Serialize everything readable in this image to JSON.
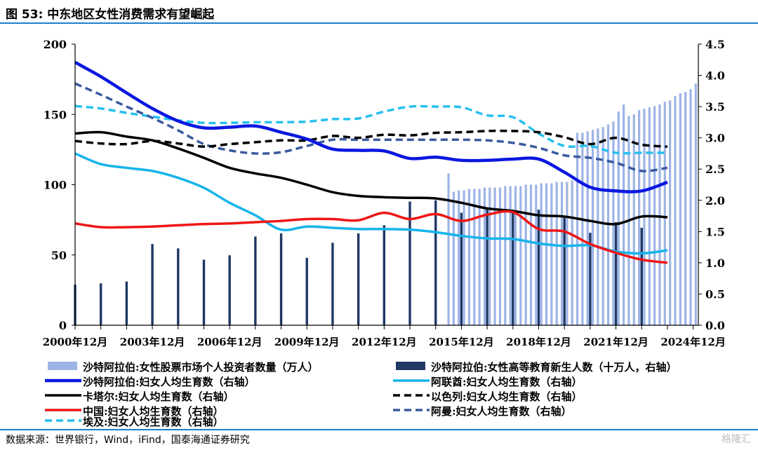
{
  "page": {
    "title": "图 53:  中东地区女性消费需求有望崛起",
    "source": "数据来源：世界银行，Wind，iFind，国泰海通证券研究",
    "watermark": "格隆汇"
  },
  "colors": {
    "rule": "#1e7fd1",
    "saudi_investors": "#9db4e6",
    "saudi_edu": "#1f3864",
    "saudi": "#0a17e0",
    "uae": "#16b4ea",
    "qatar": "#000000",
    "israel": "#000000",
    "china": "#f01616",
    "oman": "#3a5a9e",
    "egypt": "#27c0ef"
  },
  "chart_data": {
    "type": "bar+line",
    "x_years": [
      2000,
      2001,
      2002,
      2003,
      2004,
      2005,
      2006,
      2007,
      2008,
      2009,
      2010,
      2011,
      2012,
      2013,
      2014,
      2015,
      2016,
      2017,
      2018,
      2019,
      2020,
      2021,
      2022,
      2023,
      2024
    ],
    "x_tick_labels": [
      "2000年12月",
      "2003年12月",
      "2006年12月",
      "2009年12月",
      "2012年12月",
      "2015年12月",
      "2018年12月",
      "2021年12月",
      "2024年12月"
    ],
    "left_axis": {
      "ylim": [
        0,
        200
      ],
      "ticks": [
        "0",
        "50",
        "100",
        "150",
        "200"
      ]
    },
    "right_axis": {
      "ylim": [
        0,
        4.5
      ],
      "ticks": [
        "0.0",
        "0.5",
        "1.0",
        "1.5",
        "2.0",
        "2.5",
        "3.0",
        "3.5",
        "4.0",
        "4.5"
      ]
    },
    "bars_left": {
      "name": "沙特阿拉伯:女性股票市场个人投资者数量（万人）",
      "points": [
        [
          2014.5,
          108
        ],
        [
          2014.7,
          95
        ],
        [
          2014.9,
          96
        ],
        [
          2015.1,
          96
        ],
        [
          2015.3,
          97
        ],
        [
          2015.5,
          97
        ],
        [
          2015.7,
          97
        ],
        [
          2015.9,
          98
        ],
        [
          2016.1,
          98
        ],
        [
          2016.3,
          98
        ],
        [
          2016.5,
          98
        ],
        [
          2016.7,
          99
        ],
        [
          2016.9,
          99
        ],
        [
          2017.1,
          99
        ],
        [
          2017.3,
          99
        ],
        [
          2017.5,
          100
        ],
        [
          2017.7,
          100
        ],
        [
          2017.9,
          100
        ],
        [
          2018.1,
          101
        ],
        [
          2018.3,
          101
        ],
        [
          2018.5,
          101
        ],
        [
          2018.7,
          102
        ],
        [
          2018.9,
          102
        ],
        [
          2019.1,
          102
        ],
        [
          2019.3,
          103
        ],
        [
          2019.5,
          137
        ],
        [
          2019.7,
          137
        ],
        [
          2019.9,
          138
        ],
        [
          2020.1,
          139
        ],
        [
          2020.3,
          140
        ],
        [
          2020.5,
          141
        ],
        [
          2020.7,
          143
        ],
        [
          2020.9,
          145
        ],
        [
          2021.1,
          152
        ],
        [
          2021.3,
          157
        ],
        [
          2021.5,
          149
        ],
        [
          2021.7,
          150
        ],
        [
          2021.9,
          153
        ],
        [
          2022.1,
          154
        ],
        [
          2022.3,
          155
        ],
        [
          2022.5,
          156
        ],
        [
          2022.7,
          157
        ],
        [
          2022.9,
          159
        ],
        [
          2023.1,
          160
        ],
        [
          2023.3,
          163
        ],
        [
          2023.5,
          165
        ],
        [
          2023.7,
          166
        ],
        [
          2023.9,
          168
        ],
        [
          2024.1,
          172
        ]
      ]
    },
    "bars_right": {
      "name": "沙特阿拉伯:女性高等教育新生人数（十万人，右轴）",
      "years": [
        2000,
        2001,
        2002,
        2003,
        2004,
        2005,
        2006,
        2007,
        2008,
        2009,
        2010,
        2011,
        2012,
        2013,
        2014,
        2015,
        2016,
        2017,
        2018,
        2019,
        2020,
        2021,
        2022
      ],
      "values": [
        0.65,
        0.67,
        0.7,
        1.3,
        1.23,
        1.05,
        1.12,
        1.42,
        1.47,
        1.08,
        1.32,
        1.47,
        1.6,
        1.98,
        2.0,
        1.8,
        1.85,
        1.8,
        1.85,
        1.72,
        1.48,
        1.65,
        1.56
      ]
    },
    "series": [
      {
        "name": "沙特阿拉伯:妇女人均生育数（右轴）",
        "key": "saudi",
        "axis": "right",
        "dash": false,
        "x": [
          2000,
          2001,
          2002,
          2003,
          2004,
          2005,
          2006,
          2007,
          2008,
          2009,
          2010,
          2011,
          2012,
          2013,
          2014,
          2015,
          2016,
          2017,
          2018,
          2019,
          2020,
          2021,
          2022,
          2023
        ],
        "values": [
          4.21,
          3.98,
          3.72,
          3.47,
          3.27,
          3.16,
          3.17,
          3.19,
          3.09,
          2.98,
          2.82,
          2.8,
          2.79,
          2.67,
          2.69,
          2.64,
          2.64,
          2.66,
          2.66,
          2.45,
          2.21,
          2.15,
          2.15,
          2.29
        ]
      },
      {
        "name": "阿联酋:妇女人均生育数（右轴）",
        "key": "uae",
        "axis": "right",
        "dash": false,
        "x": [
          2000,
          2001,
          2002,
          2003,
          2004,
          2005,
          2006,
          2007,
          2008,
          2009,
          2010,
          2011,
          2012,
          2013,
          2014,
          2015,
          2016,
          2017,
          2018,
          2019,
          2020,
          2021,
          2022,
          2023
        ],
        "values": [
          2.75,
          2.58,
          2.52,
          2.47,
          2.36,
          2.2,
          1.96,
          1.76,
          1.53,
          1.58,
          1.56,
          1.54,
          1.54,
          1.53,
          1.49,
          1.43,
          1.39,
          1.38,
          1.31,
          1.27,
          1.28,
          1.18,
          1.15,
          1.2
        ]
      },
      {
        "name": "卡塔尔:妇女人均生育数（右轴）",
        "key": "qatar",
        "axis": "right",
        "dash": false,
        "x": [
          2000,
          2001,
          2002,
          2003,
          2004,
          2005,
          2006,
          2007,
          2008,
          2009,
          2010,
          2011,
          2012,
          2013,
          2014,
          2015,
          2016,
          2017,
          2018,
          2019,
          2020,
          2021,
          2022,
          2023
        ],
        "values": [
          3.07,
          3.09,
          3.02,
          2.96,
          2.83,
          2.68,
          2.52,
          2.43,
          2.36,
          2.25,
          2.13,
          2.07,
          2.05,
          2.04,
          2.03,
          1.96,
          1.87,
          1.83,
          1.76,
          1.74,
          1.67,
          1.62,
          1.74,
          1.73
        ]
      },
      {
        "name": "以色列:妇女人均生育数（右轴）",
        "key": "israel",
        "axis": "right",
        "dash": true,
        "x": [
          2000,
          2001,
          2002,
          2003,
          2004,
          2005,
          2006,
          2007,
          2008,
          2009,
          2010,
          2011,
          2012,
          2013,
          2014,
          2015,
          2016,
          2017,
          2018,
          2019,
          2020,
          2021,
          2022,
          2023
        ],
        "values": [
          2.95,
          2.91,
          2.9,
          2.95,
          2.91,
          2.86,
          2.9,
          2.93,
          2.96,
          2.96,
          3.03,
          3.0,
          3.05,
          3.04,
          3.08,
          3.09,
          3.11,
          3.11,
          3.09,
          3.01,
          2.9,
          3.0,
          2.89,
          2.86
        ]
      },
      {
        "name": "中国:妇女人均生育数（右轴）",
        "key": "china",
        "axis": "right",
        "dash": false,
        "x": [
          2000,
          2001,
          2002,
          2003,
          2004,
          2005,
          2006,
          2007,
          2008,
          2009,
          2010,
          2011,
          2012,
          2013,
          2014,
          2015,
          2016,
          2017,
          2018,
          2019,
          2020,
          2021,
          2022,
          2023
        ],
        "values": [
          1.63,
          1.57,
          1.57,
          1.58,
          1.6,
          1.62,
          1.63,
          1.65,
          1.67,
          1.7,
          1.7,
          1.68,
          1.8,
          1.7,
          1.78,
          1.67,
          1.77,
          1.81,
          1.54,
          1.5,
          1.3,
          1.16,
          1.05,
          1.0
        ]
      },
      {
        "name": "阿曼:妇女人均生育数（右轴）",
        "key": "oman",
        "axis": "right",
        "dash": true,
        "x": [
          2000,
          2001,
          2002,
          2003,
          2004,
          2005,
          2006,
          2007,
          2008,
          2009,
          2010,
          2011,
          2012,
          2013,
          2014,
          2015,
          2016,
          2017,
          2018,
          2019,
          2020,
          2021,
          2022,
          2023
        ],
        "values": [
          3.87,
          3.69,
          3.5,
          3.32,
          3.12,
          2.9,
          2.8,
          2.75,
          2.77,
          2.87,
          2.97,
          2.97,
          2.97,
          2.97,
          2.97,
          2.97,
          2.96,
          2.92,
          2.84,
          2.72,
          2.68,
          2.6,
          2.47,
          2.52
        ]
      },
      {
        "name": "埃及:妇女人均生育数（右轴）",
        "key": "egypt",
        "axis": "right",
        "dash": true,
        "x": [
          2000,
          2001,
          2002,
          2003,
          2004,
          2005,
          2006,
          2007,
          2008,
          2009,
          2010,
          2011,
          2012,
          2013,
          2014,
          2015,
          2016,
          2017,
          2018,
          2019,
          2020,
          2021,
          2022,
          2023
        ],
        "values": [
          3.51,
          3.47,
          3.4,
          3.34,
          3.28,
          3.24,
          3.24,
          3.25,
          3.25,
          3.26,
          3.3,
          3.31,
          3.42,
          3.5,
          3.5,
          3.49,
          3.36,
          3.33,
          3.07,
          2.87,
          2.87,
          2.76,
          2.76,
          2.76
        ]
      }
    ],
    "legend": [
      {
        "label": "沙特阿拉伯:女性股票市场个人投资者数量（万人）",
        "key": "saudi_investors",
        "kind": "bar"
      },
      {
        "label": "沙特阿拉伯:女性高等教育新生人数（十万人，右轴）",
        "key": "saudi_edu",
        "kind": "bar"
      },
      {
        "label": "沙特阿拉伯:妇女人均生育数（右轴）",
        "key": "saudi",
        "kind": "solid"
      },
      {
        "label": "阿联酋:妇女人均生育数（右轴）",
        "key": "uae",
        "kind": "solid"
      },
      {
        "label": "卡塔尔:妇女人均生育数（右轴）",
        "key": "qatar",
        "kind": "solid"
      },
      {
        "label": "以色列:妇女人均生育数（右轴）",
        "key": "israel",
        "kind": "dash"
      },
      {
        "label": "中国:妇女人均生育数（右轴）",
        "key": "china",
        "kind": "solid"
      },
      {
        "label": "阿曼:妇女人均生育数（右轴）",
        "key": "oman",
        "kind": "dash"
      },
      {
        "label": "埃及:妇女人均生育数（右轴）",
        "key": "egypt",
        "kind": "dash"
      }
    ]
  }
}
